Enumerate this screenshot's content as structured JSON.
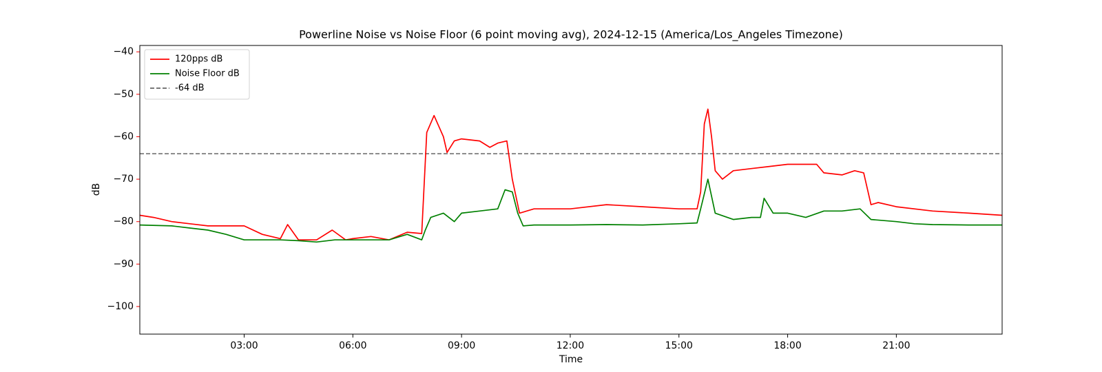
{
  "chart_data": {
    "type": "line",
    "title": "Powerline Noise vs Noise Floor (6 point moving avg), 2024-12-15 (America/Los_Angeles Timezone)",
    "x_label": "Time",
    "y_label": "dB",
    "axis_color": "#ff0000",
    "xlim": [
      0.12,
      23.92
    ],
    "xticks": [
      {
        "value": 3,
        "label": "03:00"
      },
      {
        "value": 6,
        "label": "06:00"
      },
      {
        "value": 9,
        "label": "09:00"
      },
      {
        "value": 12,
        "label": "12:00"
      },
      {
        "value": 15,
        "label": "15:00"
      },
      {
        "value": 18,
        "label": "18:00"
      },
      {
        "value": 21,
        "label": "21:00"
      }
    ],
    "ylim": [
      -106.5,
      -38.5
    ],
    "yticks": [
      {
        "value": -40,
        "label": "−40"
      },
      {
        "value": -50,
        "label": "−50"
      },
      {
        "value": -60,
        "label": "−60"
      },
      {
        "value": -70,
        "label": "−70"
      },
      {
        "value": -80,
        "label": "−80"
      },
      {
        "value": -90,
        "label": "−90"
      },
      {
        "value": -100,
        "label": "−100"
      }
    ],
    "grid": false,
    "legend": "upper left",
    "series": [
      {
        "name": "120pps dB",
        "color": "#ff0000",
        "x": [
          0.12,
          0.5,
          1,
          1.5,
          2,
          2.5,
          3,
          3.5,
          4,
          4.2,
          4.5,
          5,
          5.43,
          5.8,
          6,
          6.5,
          7,
          7.5,
          7.9,
          8.04,
          8.24,
          8.5,
          8.6,
          8.8,
          9,
          9.5,
          9.78,
          10,
          10.25,
          10.4,
          10.6,
          11,
          12,
          13,
          14,
          15,
          15.5,
          15.6,
          15.7,
          15.8,
          15.9,
          16,
          16.2,
          16.5,
          17,
          17.5,
          18,
          18.5,
          18.8,
          19,
          19.5,
          19.85,
          20.1,
          20.3,
          20.5,
          21,
          22,
          23,
          23.92
        ],
        "values": [
          -78.5,
          -79,
          -80,
          -80.5,
          -81,
          -81,
          -81,
          -83,
          -84,
          -80.7,
          -84.3,
          -84.3,
          -82,
          -84.3,
          -84,
          -83.5,
          -84.3,
          -82.5,
          -82.8,
          -59,
          -55,
          -60,
          -63.7,
          -61,
          -60.5,
          -61,
          -62.5,
          -61.5,
          -61,
          -70,
          -78,
          -77,
          -77,
          -76,
          -76.5,
          -77,
          -77,
          -73,
          -57,
          -53.5,
          -60,
          -68,
          -70,
          -68,
          -67.5,
          -67,
          -66.5,
          -66.5,
          -66.5,
          -68.5,
          -69,
          -68,
          -68.5,
          -76,
          -75.5,
          -76.5,
          -77.5,
          -78,
          -78.5
        ]
      },
      {
        "name": "Noise Floor dB",
        "color": "#008000",
        "x": [
          0.12,
          1,
          1.5,
          2,
          2.5,
          3,
          4,
          4.5,
          5,
          5.5,
          6,
          7,
          7.5,
          7.9,
          8,
          8.15,
          8.5,
          8.8,
          9,
          9.5,
          10,
          10.2,
          10.4,
          10.55,
          10.7,
          11,
          12,
          13,
          14,
          15,
          15.5,
          15.6,
          15.8,
          16,
          16.5,
          17,
          17.25,
          17.35,
          17.6,
          18,
          18.5,
          19,
          19.5,
          20,
          20.3,
          21,
          21.5,
          22,
          23,
          23.92
        ],
        "values": [
          -80.8,
          -81,
          -81.5,
          -82,
          -83,
          -84.3,
          -84.3,
          -84.5,
          -84.8,
          -84.3,
          -84.3,
          -84.3,
          -83,
          -84.3,
          -82,
          -79,
          -78,
          -80,
          -78,
          -77.5,
          -77,
          -72.5,
          -73,
          -78,
          -81,
          -80.8,
          -80.8,
          -80.7,
          -80.8,
          -80.5,
          -80.3,
          -77,
          -70,
          -78,
          -79.5,
          -79,
          -79,
          -74.5,
          -78,
          -78,
          -79,
          -77.5,
          -77.5,
          -77,
          -79.5,
          -80,
          -80.5,
          -80.7,
          -80.8,
          -80.8
        ]
      }
    ],
    "hline": {
      "name": "-64 dB",
      "value": -64,
      "color": "#666666"
    }
  }
}
